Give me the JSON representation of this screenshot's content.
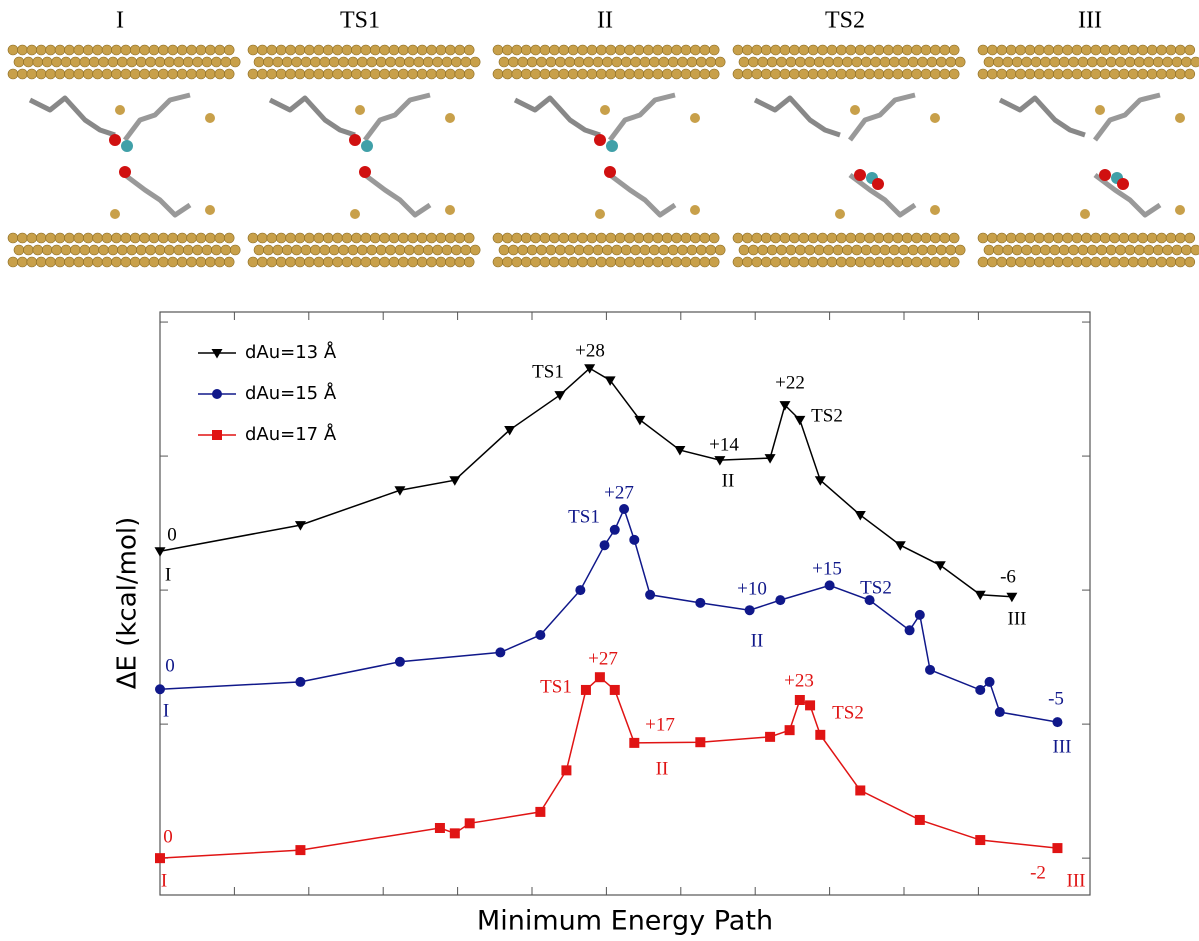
{
  "panel_labels": [
    "I",
    "TS1",
    "II",
    "TS2",
    "III"
  ],
  "chart_data": {
    "type": "line",
    "y_label": "ΔE (kcal/mol)",
    "x_label": "Minimum Energy Path",
    "xlim": [
      0,
      100
    ],
    "ylim": [
      -5.5,
      81.5
    ],
    "xticks": [
      8,
      16,
      24,
      32,
      40,
      48,
      56,
      64,
      72,
      80,
      88
    ],
    "yticks": [
      0,
      20,
      40,
      60,
      80
    ],
    "legend": "top-left",
    "series": [
      {
        "name": "dAu=13 Å",
        "color": "#000000",
        "marker": "triangle-down",
        "x": [
          0,
          15.1,
          25.8,
          31.7,
          37.6,
          43.0,
          46.2,
          48.4,
          51.6,
          55.9,
          60.2,
          65.6,
          67.2,
          68.8,
          71.0,
          75.3,
          79.6,
          83.9,
          88.2,
          91.6
        ],
        "values": [
          45.8,
          49.7,
          54.9,
          56.4,
          63.9,
          69.1,
          73.1,
          71.3,
          65.4,
          60.9,
          59.4,
          59.7,
          67.6,
          65.4,
          56.4,
          51.2,
          46.7,
          43.7,
          39.3,
          39.0
        ],
        "annotations": [
          "+28",
          "TS1",
          "+22",
          "TS2",
          "+14",
          "II",
          "0",
          "I",
          "-6",
          "III"
        ]
      },
      {
        "name": "dAu=15 Å",
        "color": "#10188a",
        "marker": "circle",
        "x": [
          0,
          15.1,
          25.8,
          36.6,
          40.9,
          45.2,
          47.8,
          48.9,
          49.9,
          51.0,
          52.7,
          58.1,
          63.4,
          66.7,
          72.0,
          76.3,
          80.6,
          81.7,
          82.8,
          88.2,
          89.2,
          90.3,
          96.5
        ],
        "values": [
          25.2,
          26.3,
          29.3,
          30.7,
          33.3,
          40.0,
          46.7,
          49.0,
          52.1,
          47.5,
          39.3,
          38.1,
          37.0,
          38.5,
          40.7,
          38.5,
          34.0,
          36.3,
          28.1,
          25.1,
          26.3,
          21.8,
          20.3
        ],
        "annotations": [
          "+27",
          "TS1",
          "+10",
          "II",
          "+15",
          "TS2",
          "0",
          "I",
          "-5",
          "III"
        ]
      },
      {
        "name": "dAu=17 Å",
        "color": "#e01414",
        "marker": "square",
        "x": [
          0,
          15.1,
          30.1,
          31.7,
          33.3,
          40.9,
          43.7,
          45.8,
          47.3,
          48.9,
          51.0,
          58.1,
          65.6,
          67.7,
          68.8,
          69.9,
          71.0,
          75.3,
          81.7,
          88.2,
          96.5
        ],
        "values": [
          0,
          1.2,
          4.5,
          3.7,
          5.2,
          6.9,
          13.1,
          25.1,
          27.0,
          25.1,
          17.2,
          17.3,
          18.1,
          19.1,
          23.6,
          22.8,
          18.4,
          10.1,
          5.7,
          2.7,
          1.5
        ],
        "annotations": [
          "+27",
          "TS1",
          "+17",
          "II",
          "+23",
          "TS2",
          "0",
          "I",
          "-2",
          "III"
        ]
      }
    ]
  }
}
